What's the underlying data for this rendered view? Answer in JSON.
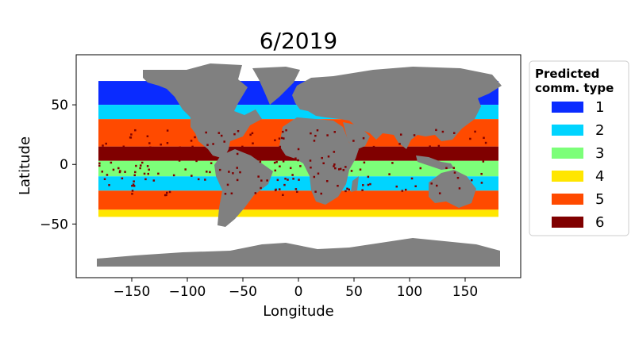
{
  "chart_data": {
    "type": "map",
    "title": "6/2019",
    "xlabel": "Longitude",
    "ylabel": "Latitude",
    "xlim": [
      -200,
      200
    ],
    "ylim": [
      -95,
      92
    ],
    "xticks": [
      -150,
      -100,
      -50,
      0,
      50,
      100,
      150
    ],
    "xtick_labels": [
      "−150",
      "−100",
      "−50",
      "0",
      "50",
      "100",
      "150"
    ],
    "yticks": [
      -50,
      0,
      50
    ],
    "ytick_labels": [
      "−50",
      "0",
      "50"
    ],
    "legend": {
      "title_lines": [
        "Predicted",
        "comm. type"
      ],
      "placement": "right, outside plot",
      "entries": [
        {
          "label": "1",
          "color": "#0a2bff"
        },
        {
          "label": "2",
          "color": "#00d4ff"
        },
        {
          "label": "3",
          "color": "#7cff79"
        },
        {
          "label": "4",
          "color": "#ffe600"
        },
        {
          "label": "5",
          "color": "#ff4a00"
        },
        {
          "label": "6",
          "color": "#800000"
        }
      ]
    },
    "land_color": "#808080",
    "ocean_bands": [
      {
        "lat_range": [
          50,
          70
        ],
        "type": "1"
      },
      {
        "lat_range": [
          38,
          50
        ],
        "type": "2"
      },
      {
        "lat_range": [
          15,
          38
        ],
        "type": "5"
      },
      {
        "lat_range": [
          3,
          15
        ],
        "type": "6"
      },
      {
        "lat_range": [
          -10,
          3
        ],
        "type": "3"
      },
      {
        "lat_range": [
          -22,
          -10
        ],
        "type": "2"
      },
      {
        "lat_range": [
          -38,
          -22
        ],
        "type": "5"
      },
      {
        "lat_range": [
          -44,
          -38
        ],
        "type": "4"
      }
    ]
  }
}
